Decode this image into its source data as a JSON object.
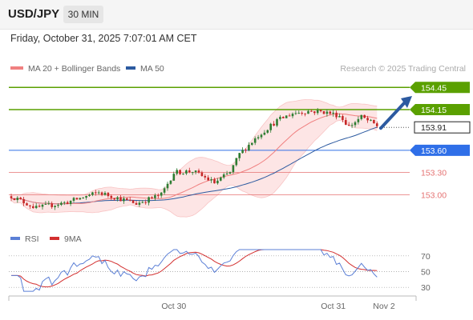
{
  "header": {
    "symbol": "USD/JPY",
    "timeframe": "30 MIN"
  },
  "datetime": "Friday, October 31, 2025 7:07:01 AM CET",
  "legend": {
    "ma20_label": "MA 20 + Bollinger Bands",
    "ma50_label": "MA 50",
    "rsi_label": "RSI",
    "ma9_label": "9MA"
  },
  "credit": "Research © 2025 Trading Central",
  "colors": {
    "up": "#2e7d32",
    "down": "#c62828",
    "ma20": "#f08080",
    "ma50": "#2c5aa0",
    "resistance": "#5aa000",
    "pivot": "#2f6fe8",
    "support": "#e57373",
    "band_fill": "#fde2e2",
    "arrow": "#2c5aa0",
    "rsi": "#5b7fd6",
    "rsi_ma": "#d32f2f"
  },
  "chart_data": [
    {
      "type": "candlestick",
      "title": "USD/JPY 30 MIN",
      "ylim": [
        152.55,
        154.55
      ],
      "ohlc": [],
      "ma20": [],
      "ma50": [],
      "bollinger_upper": [],
      "bollinger_lower": [],
      "levels": [
        {
          "value": 154.45,
          "label": "154.45",
          "kind": "resistance"
        },
        {
          "value": 154.15,
          "label": "154.15",
          "kind": "resistance"
        },
        {
          "value": 153.91,
          "label": "153.91",
          "kind": "last"
        },
        {
          "value": 153.6,
          "label": "153.60",
          "kind": "pivot"
        },
        {
          "value": 153.3,
          "label": "153.30",
          "kind": "support"
        },
        {
          "value": 153.0,
          "label": "153.00",
          "kind": "support"
        }
      ],
      "x_ticks": [
        "Oct 30",
        "Oct 31",
        "Nov 2"
      ],
      "projection": "up"
    },
    {
      "type": "line",
      "title": "RSI",
      "ylim": [
        20,
        80
      ],
      "y_ticks": [
        "70",
        "50",
        "30"
      ],
      "series": [
        {
          "name": "RSI",
          "values": []
        },
        {
          "name": "9MA",
          "values": []
        }
      ]
    }
  ]
}
